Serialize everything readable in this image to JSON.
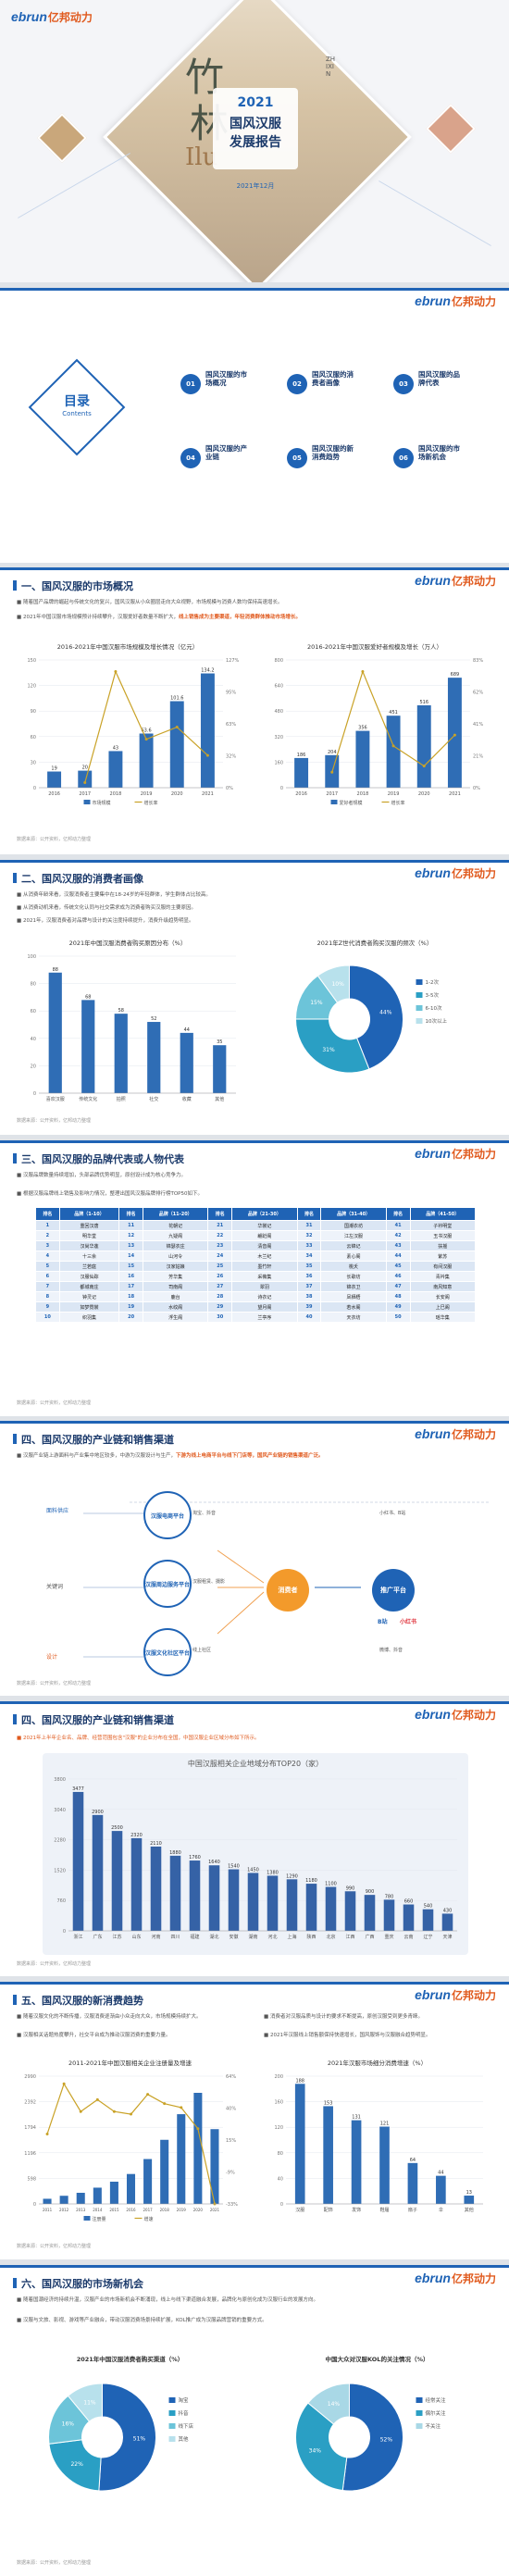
{
  "brand": {
    "logo_en": "ebrun",
    "logo_cn": "亿邦动力"
  },
  "cover": {
    "year": "2021",
    "title_line1": "国风汉服",
    "title_line2": "发展报告",
    "date": "2021年12月",
    "deco_chars": [
      "竹",
      "林",
      "Ilu"
    ],
    "seal": "ZHIXIN"
  },
  "toc": {
    "title": "目录",
    "subtitle": "Contents",
    "items": [
      {
        "num": "01",
        "label": "国风汉服的市场概况"
      },
      {
        "num": "02",
        "label": "国风汉服的消费者画像"
      },
      {
        "num": "03",
        "label": "国风汉服的品牌代表"
      },
      {
        "num": "04",
        "label": "国风汉服的产业链"
      },
      {
        "num": "05",
        "label": "国风汉服的新消费趋势"
      },
      {
        "num": "06",
        "label": "国风汉服的市场新机会"
      }
    ]
  },
  "s1": {
    "title": "一、国风汉服的市场概况",
    "p1": "随着国产品牌的崛起与传统文化的复兴，国风汉服从小众圈层走向大众视野，市场规模与消费人数均保持高速增长。",
    "p2": "2021年中国汉服市场规模预计持续攀升，汉服爱好者数量不断扩大，",
    "p2_hl": "线上销售成为主要渠道，年轻消费群体推动市场增长。",
    "chart1_title": "2016-2021年中国汉服市场规模及增长情况（亿元）",
    "chart2_title": "2016-2021年中国汉服爱好者规模及增长（万人）",
    "src": "数据来源：公开资料，亿邦动力整理"
  },
  "s2": {
    "title": "二、国风汉服的消费者画像",
    "p1": "从消费年龄来看，汉服消费者主要集中在18-24岁的年轻群体，学生群体占比较高。",
    "p2": "从消费动机来看，传统文化认同与社交需求成为消费者购买汉服的主要原因。",
    "p3": "2021年，汉服消费者对品牌与设计的关注度持续提升，消费升级趋势明显。",
    "chart1_title": "2021年中国汉服消费者购买原因分布（%）",
    "chart2_title": "2021年Z世代消费者购买汉服的频次（%）",
    "src": "数据来源：公开资料，亿邦动力整理"
  },
  "s3": {
    "title": "三、国风汉服的品牌代表或人物代表",
    "p1": "汉服品牌数量持续增加，头部品牌优势明显，原创设计成为核心竞争力。",
    "p2": "根据汉服品牌线上销售及影响力情况，整理出国风汉服品牌排行榜TOP50如下。",
    "headers": [
      "排名",
      "品牌（1-10）",
      "排名",
      "品牌（11-20）",
      "排名",
      "品牌（21-30）",
      "排名",
      "品牌（31-40）",
      "排名",
      "品牌（41-50）"
    ],
    "col1": [
      "重回汉唐",
      "明华堂",
      "汉尚华莲",
      "十三余",
      "兰若庭",
      "汉服仙踪",
      "都城南庄",
      "钟灵记",
      "如梦霓裳",
      "织羽集"
    ],
    "col2": [
      "花朝记",
      "九疑阁",
      "锦瑟衣庄",
      "山河令",
      "汉家姑娘",
      "芳华集",
      "司南阁",
      "鹿台",
      "水纹阁",
      "浮生阁"
    ],
    "col3": [
      "华裳记",
      "翩跹阁",
      "清音阁",
      "木兰纪",
      "墨竹轩",
      "采薇集",
      "翠羽",
      "诗衣记",
      "望月阁",
      "兰亭序"
    ],
    "col4": [
      "国潮衣坊",
      "江左汉服",
      "云锦记",
      "素心阁",
      "桃夭",
      "长歌坊",
      "锦衣卫",
      "凤栖梧",
      "若水阁",
      "天衣坊"
    ],
    "col5": [
      "子衿明堂",
      "玉书汉服",
      "扶摇",
      "紫苏",
      "有间汉服",
      "青衿集",
      "南风知意",
      "长安阁",
      "上巳阁",
      "瑶华集"
    ],
    "src": "数据来源：公开资料，亿邦动力整理"
  },
  "s4": {
    "title": "四、国风汉服的产业链和销售渠道",
    "p1": "汉服产业链上游面料与产业集中地区较多，中游为汉服设计与生产，",
    "p1_hl": "下游为线上电商平台与线下门店等，国风产业链的销售渠道广泛。",
    "left": [
      "面料供应",
      "关键词",
      "设计"
    ],
    "mid": [
      "汉服电商平台",
      "汉服周边服务平台",
      "汉服文化社区平台"
    ],
    "mid_sub": [
      "淘宝、抖音",
      "汉服租赁、摄影",
      "线上社区"
    ],
    "center": "消费者",
    "right": "推广平台",
    "right_sub": [
      "小红书、B站",
      "微博、抖音"
    ],
    "right_labels": [
      "B站",
      "小红书"
    ],
    "src": "数据来源：公开资料，亿邦动力整理"
  },
  "s5": {
    "title": "四、国风汉服的产业链和销售渠道",
    "p1": "2021年上半年企业名、品牌、经营范围包含\"汉服\"的企业分布在全国，中国汉服企业区域分布如下所示。",
    "chart_title": "中国汉服相关企业地域分布TOP20（家）",
    "src": "数据来源：公开资料，亿邦动力整理"
  },
  "s6": {
    "title": "五、国风汉服的新消费趋势",
    "p1": "随着汉服文化的不断传播，汉服消费逐渐由小众走向大众，市场规模持续扩大。",
    "p2": "汉服相关话题热度攀升，社交平台成为推动汉服消费的重要力量。",
    "p3": "消费者对汉服品质与设计的要求不断提高，原创汉服受到更多青睐。",
    "p4": "2021年汉服线上销售额保持快速增长，国风服饰与汉服融合趋势明显。",
    "chart1_title": "2011-2021年中国汉服相关企业注册量及增速",
    "chart2_title": "2021年汉服市场细分消费增速（%）",
    "src": "数据来源：公开资料，亿邦动力整理"
  },
  "s7": {
    "title": "六、国风汉服的市场新机会",
    "p1": "随着国潮经济的持续升温，汉服产业的市场新机会不断涌现，线上与线下渠道融合发展，品牌化与原创化成为汉服行业的发展方向。",
    "p2": "汉服与文旅、影视、游戏等产业融合，带动汉服消费场景持续扩展，KOL推广成为汉服品牌营销的重要方式。",
    "chart1_title": "2021年中国汉服消费者购买渠道（%）",
    "chart2_title": "中国大众对汉服KOL的关注情况（%）",
    "src": "数据来源：公开资料，亿邦动力整理"
  },
  "chart_data": [
    {
      "type": "bar",
      "title": "2016-2021年中国汉服市场规模及增长情况（亿元）",
      "categories": [
        "2016",
        "2017",
        "2018",
        "2019",
        "2020",
        "2021"
      ],
      "series": [
        {
          "name": "市场规模",
          "values": [
            19.0,
            20.0,
            43.0,
            63.6,
            101.6,
            134.2
          ]
        },
        {
          "name": "增长率",
          "values": [
            null,
            5,
            115,
            48,
            60,
            32
          ]
        }
      ],
      "ylim": [
        0,
        150
      ]
    },
    {
      "type": "bar",
      "title": "2016-2021年中国汉服爱好者规模及增长（万人）",
      "categories": [
        "2016",
        "2017",
        "2018",
        "2019",
        "2020",
        "2021"
      ],
      "series": [
        {
          "name": "爱好者规模",
          "values": [
            186,
            204,
            356,
            451,
            516,
            689
          ]
        },
        {
          "name": "增长率",
          "values": [
            null,
            10,
            75,
            27,
            14,
            34
          ]
        }
      ],
      "ylim": [
        0,
        800
      ]
    },
    {
      "type": "bar",
      "title": "2021年中国汉服消费者购买原因分布（%）",
      "categories": [
        "喜欢汉服",
        "传统文化",
        "拍照",
        "社交",
        "收藏",
        "其他"
      ],
      "values": [
        88,
        68,
        58,
        52,
        44,
        35
      ],
      "ylim": [
        0,
        100
      ]
    },
    {
      "type": "pie",
      "title": "2021年Z世代消费者购买汉服的频次（%）",
      "categories": [
        "1-2次",
        "3-5次",
        "6-10次",
        "10次以上"
      ],
      "values": [
        44,
        31,
        15,
        10
      ]
    },
    {
      "type": "bar",
      "title": "中国汉服相关企业地域分布TOP20（家）",
      "categories": [
        "浙江",
        "广东",
        "江苏",
        "山东",
        "河南",
        "四川",
        "福建",
        "湖北",
        "安徽",
        "湖南",
        "河北",
        "上海",
        "陕西",
        "北京",
        "江西",
        "广西",
        "重庆",
        "云南",
        "辽宁",
        "天津"
      ],
      "values": [
        3477,
        2900,
        2500,
        2320,
        2110,
        1880,
        1760,
        1640,
        1540,
        1450,
        1380,
        1290,
        1180,
        1100,
        990,
        900,
        780,
        660,
        540,
        430
      ],
      "ylim": [
        0,
        3800
      ]
    },
    {
      "type": "bar",
      "title": "2011-2021年中国汉服相关企业注册量及增速",
      "categories": [
        "2011",
        "2012",
        "2013",
        "2014",
        "2015",
        "2016",
        "2017",
        "2018",
        "2019",
        "2020",
        "2021"
      ],
      "series": [
        {
          "name": "注册量",
          "values": [
            120,
            190,
            260,
            380,
            520,
            700,
            1050,
            1500,
            2100,
            2600,
            1750
          ]
        },
        {
          "name": "增速",
          "values": [
            20,
            58,
            37,
            46,
            37,
            35,
            50,
            43,
            40,
            24,
            -33
          ]
        }
      ]
    },
    {
      "type": "bar",
      "title": "2021年汉服市场细分消费增速（%）",
      "categories": [
        "汉服",
        "配饰",
        "发饰",
        "鞋履",
        "扇子",
        "伞",
        "其他"
      ],
      "values": [
        188,
        153,
        131,
        121,
        64,
        44,
        13
      ],
      "ylim": [
        0,
        200
      ]
    },
    {
      "type": "pie",
      "title": "2021年中国汉服消费者购买渠道（%）",
      "categories": [
        "淘宝",
        "抖音",
        "线下店",
        "其他"
      ],
      "values": [
        51,
        22,
        16,
        11
      ]
    },
    {
      "type": "pie",
      "title": "中国大众对汉服KOL的关注情况（%）",
      "categories": [
        "经常关注",
        "偶尔关注",
        "不关注"
      ],
      "values": [
        52,
        34,
        14
      ]
    }
  ]
}
